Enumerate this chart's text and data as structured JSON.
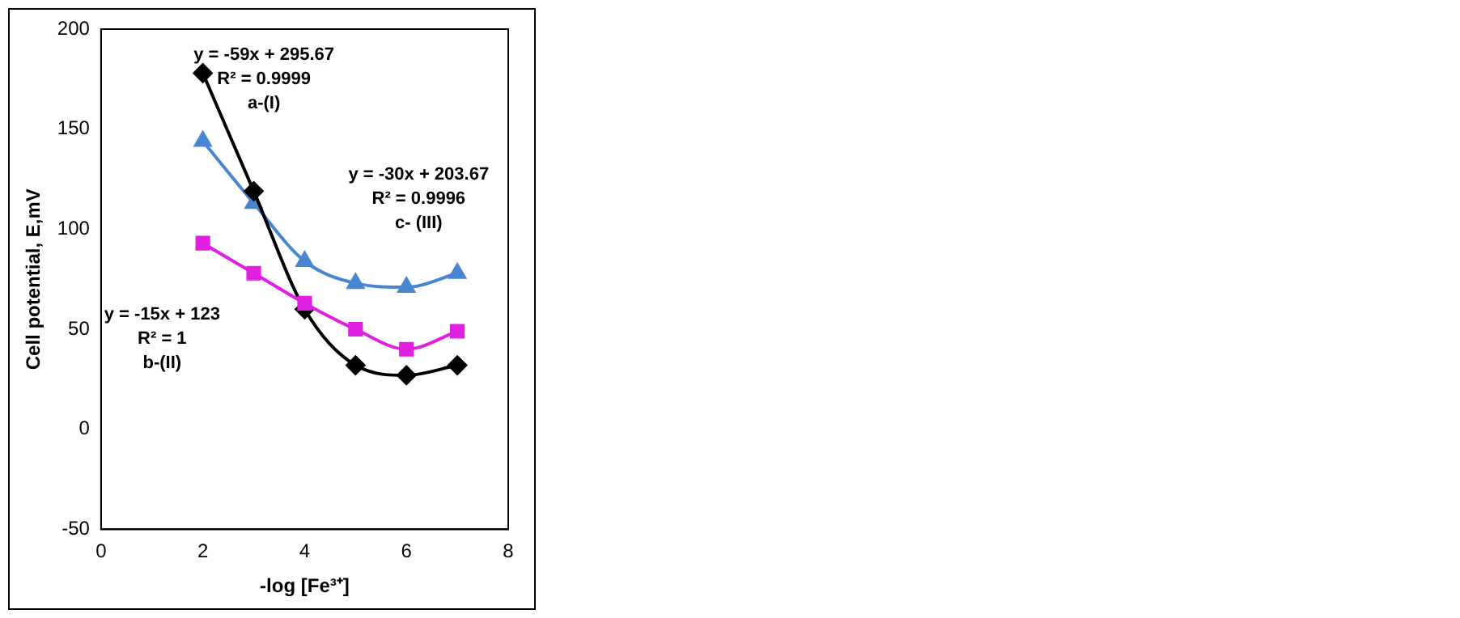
{
  "chart_data": {
    "type": "line",
    "xlabel": "-log [Fe³⁺]",
    "ylabel": "Cell potential, E,mV",
    "x": [
      2,
      3,
      4,
      5,
      6,
      7
    ],
    "series": [
      {
        "color": "#000000",
        "marker": "diamond",
        "values": [
          178,
          119,
          60,
          32,
          27,
          32
        ]
      },
      {
        "color": "#e020e0",
        "marker": "square",
        "values": [
          93,
          78,
          63,
          50,
          40,
          49
        ]
      },
      {
        "color": "#4a86d0",
        "marker": "triangle",
        "values": [
          144,
          113,
          84,
          73,
          71,
          78
        ]
      }
    ],
    "xlim": [
      0,
      8
    ],
    "xticks": [
      0,
      2,
      4,
      6,
      8
    ],
    "ylim": [
      -50,
      200
    ],
    "yticks": [
      -50,
      0,
      50,
      100,
      150,
      200
    ],
    "grid": false,
    "legend": false,
    "annotations": [
      "y = -59x + 295.67\nR² = 0.9999\na-(I)",
      "y = -30x + 203.67\nR² = 0.9996\nc- (III)",
      "y = -15x + 123\nR² = 1\nb-(II)"
    ]
  }
}
